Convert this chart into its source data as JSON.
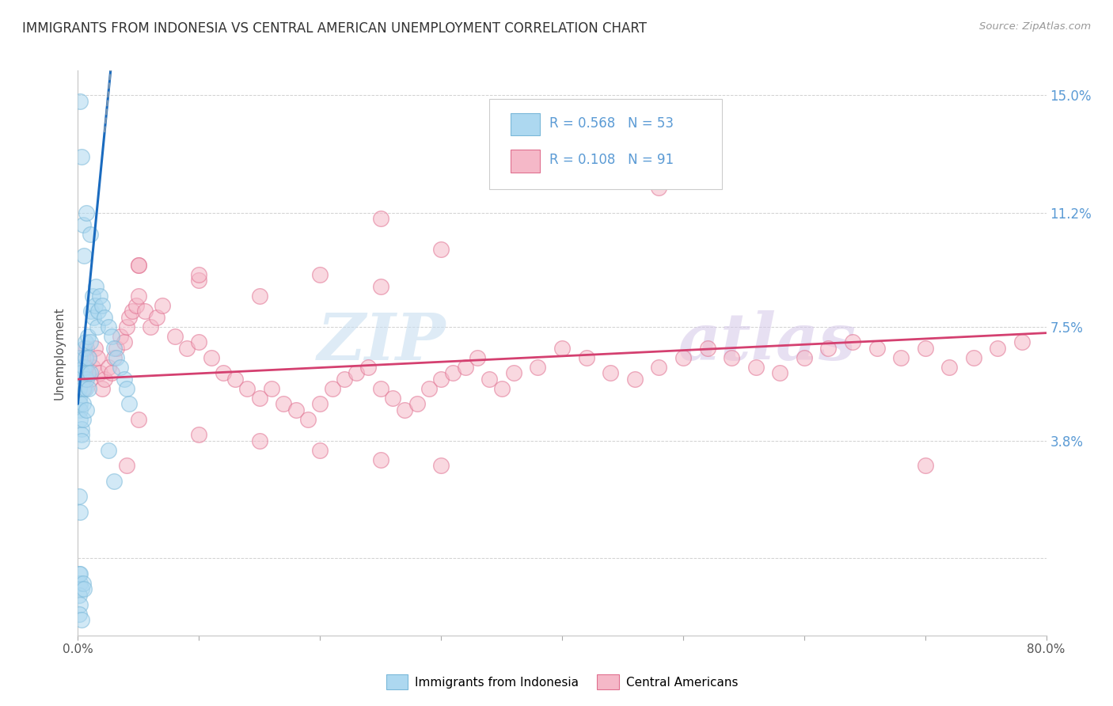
{
  "title": "IMMIGRANTS FROM INDONESIA VS CENTRAL AMERICAN UNEMPLOYMENT CORRELATION CHART",
  "source": "Source: ZipAtlas.com",
  "ylabel": "Unemployment",
  "color_blue": "#add8f0",
  "color_blue_edge": "#7ab8d9",
  "color_pink": "#f5b8c8",
  "color_pink_edge": "#e07090",
  "color_blue_line": "#1a6bbf",
  "color_pink_line": "#d44070",
  "xlim": [
    0.0,
    0.8
  ],
  "ylim": [
    -0.025,
    0.158
  ],
  "ytick_vals": [
    0.0,
    0.038,
    0.075,
    0.112,
    0.15
  ],
  "ytick_labels": [
    "",
    "3.8%",
    "7.5%",
    "11.2%",
    "15.0%"
  ],
  "xtick_vals": [
    0.0,
    0.1,
    0.2,
    0.3,
    0.4,
    0.5,
    0.6,
    0.7,
    0.8
  ],
  "legend_text1": "R = 0.568   N = 53",
  "legend_text2": "R = 0.108   N = 91",
  "legend_color": "#5b9bd5",
  "watermark_zip": "ZIP",
  "watermark_atlas": "atlas",
  "label_indonesia": "Immigrants from Indonesia",
  "label_central": "Central Americans",
  "indo_x": [
    0.001,
    0.001,
    0.001,
    0.001,
    0.002,
    0.002,
    0.002,
    0.002,
    0.002,
    0.003,
    0.003,
    0.003,
    0.003,
    0.004,
    0.004,
    0.004,
    0.005,
    0.005,
    0.006,
    0.006,
    0.006,
    0.007,
    0.007,
    0.008,
    0.008,
    0.009,
    0.009,
    0.01,
    0.01,
    0.011,
    0.012,
    0.013,
    0.014,
    0.015,
    0.016,
    0.017,
    0.018,
    0.02,
    0.022,
    0.025,
    0.028,
    0.03,
    0.032,
    0.035,
    0.038,
    0.04,
    0.042,
    0.002,
    0.003,
    0.004,
    0.005,
    0.007,
    0.01
  ],
  "indo_y": [
    0.058,
    0.055,
    0.052,
    0.06,
    0.05,
    0.048,
    0.045,
    0.062,
    0.065,
    0.042,
    0.04,
    0.038,
    0.06,
    0.055,
    0.05,
    0.045,
    0.068,
    0.062,
    0.07,
    0.065,
    0.055,
    0.058,
    0.048,
    0.072,
    0.06,
    0.065,
    0.055,
    0.07,
    0.06,
    0.08,
    0.085,
    0.078,
    0.082,
    0.088,
    0.075,
    0.08,
    0.085,
    0.082,
    0.078,
    0.075,
    0.072,
    0.068,
    0.065,
    0.062,
    0.058,
    0.055,
    0.05,
    0.148,
    0.13,
    0.108,
    0.098,
    0.112,
    0.105
  ],
  "cent_x": [
    0.002,
    0.003,
    0.004,
    0.005,
    0.006,
    0.007,
    0.008,
    0.009,
    0.01,
    0.012,
    0.014,
    0.016,
    0.018,
    0.02,
    0.022,
    0.025,
    0.028,
    0.03,
    0.032,
    0.035,
    0.038,
    0.04,
    0.042,
    0.045,
    0.048,
    0.05,
    0.055,
    0.06,
    0.065,
    0.07,
    0.08,
    0.09,
    0.1,
    0.11,
    0.12,
    0.13,
    0.14,
    0.15,
    0.16,
    0.17,
    0.18,
    0.19,
    0.2,
    0.21,
    0.22,
    0.23,
    0.24,
    0.25,
    0.26,
    0.27,
    0.28,
    0.29,
    0.3,
    0.31,
    0.32,
    0.33,
    0.34,
    0.35,
    0.36,
    0.38,
    0.4,
    0.42,
    0.44,
    0.46,
    0.48,
    0.5,
    0.52,
    0.54,
    0.56,
    0.58,
    0.6,
    0.62,
    0.64,
    0.66,
    0.68,
    0.7,
    0.72,
    0.74,
    0.76,
    0.78,
    0.05,
    0.1,
    0.15,
    0.2,
    0.25,
    0.3,
    0.05,
    0.1,
    0.15,
    0.2,
    0.25
  ],
  "cent_y": [
    0.065,
    0.06,
    0.058,
    0.055,
    0.062,
    0.068,
    0.06,
    0.065,
    0.058,
    0.062,
    0.068,
    0.065,
    0.06,
    0.055,
    0.058,
    0.062,
    0.06,
    0.065,
    0.068,
    0.072,
    0.07,
    0.075,
    0.078,
    0.08,
    0.082,
    0.085,
    0.08,
    0.075,
    0.078,
    0.082,
    0.072,
    0.068,
    0.07,
    0.065,
    0.06,
    0.058,
    0.055,
    0.052,
    0.055,
    0.05,
    0.048,
    0.045,
    0.05,
    0.055,
    0.058,
    0.06,
    0.062,
    0.055,
    0.052,
    0.048,
    0.05,
    0.055,
    0.058,
    0.06,
    0.062,
    0.065,
    0.058,
    0.055,
    0.06,
    0.062,
    0.068,
    0.065,
    0.06,
    0.058,
    0.062,
    0.065,
    0.068,
    0.065,
    0.062,
    0.06,
    0.065,
    0.068,
    0.07,
    0.068,
    0.065,
    0.068,
    0.062,
    0.065,
    0.068,
    0.07,
    0.045,
    0.04,
    0.038,
    0.035,
    0.032,
    0.03,
    0.095,
    0.09,
    0.085,
    0.092,
    0.088
  ],
  "cent_outlier_x": [
    0.38,
    0.48,
    0.25,
    0.3,
    0.05,
    0.1,
    0.7,
    0.04
  ],
  "cent_outlier_y": [
    0.128,
    0.12,
    0.11,
    0.1,
    0.095,
    0.092,
    0.03,
    0.03
  ]
}
